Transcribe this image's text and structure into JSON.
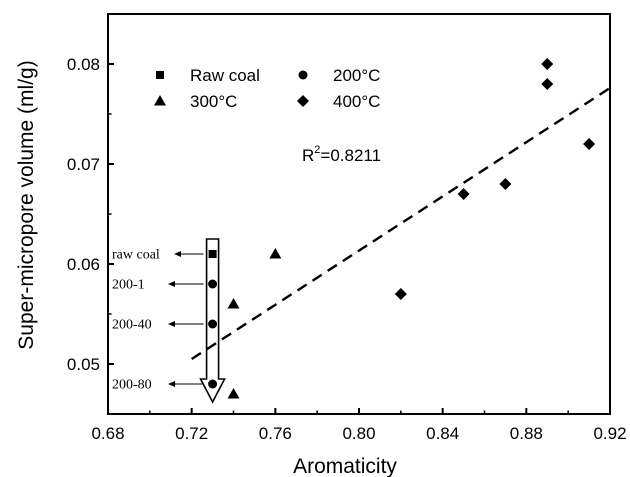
{
  "chart_data": {
    "type": "scatter",
    "title": "",
    "xlabel": "Aromaticity",
    "ylabel": "Super-micropore volume (ml/g)",
    "xlim": [
      0.68,
      0.92
    ],
    "ylim": [
      0.045,
      0.085
    ],
    "x_ticks": [
      "0.68",
      "0.72",
      "0.76",
      "0.80",
      "0.84",
      "0.88",
      "0.92"
    ],
    "y_ticks": [
      "0.05",
      "0.06",
      "0.07",
      "0.08"
    ],
    "x_tick_values": [
      0.68,
      0.72,
      0.76,
      0.8,
      0.84,
      0.88,
      0.92
    ],
    "y_tick_values": [
      0.05,
      0.06,
      0.07,
      0.08
    ],
    "grid": false,
    "legend_position": "top-left",
    "series": [
      {
        "name": "Raw coal",
        "marker": "square",
        "color": "#000000",
        "points": [
          {
            "x": 0.73,
            "y": 0.061
          }
        ]
      },
      {
        "name": "200°C",
        "marker": "circle",
        "color": "#000000",
        "points": [
          {
            "x": 0.73,
            "y": 0.058
          },
          {
            "x": 0.73,
            "y": 0.054
          },
          {
            "x": 0.73,
            "y": 0.048
          }
        ]
      },
      {
        "name": "300°C",
        "marker": "triangle",
        "color": "#000000",
        "points": [
          {
            "x": 0.74,
            "y": 0.056
          },
          {
            "x": 0.74,
            "y": 0.047
          },
          {
            "x": 0.76,
            "y": 0.061
          }
        ]
      },
      {
        "name": "400°C",
        "marker": "diamond",
        "color": "#000000",
        "points": [
          {
            "x": 0.82,
            "y": 0.057
          },
          {
            "x": 0.85,
            "y": 0.067
          },
          {
            "x": 0.87,
            "y": 0.068
          },
          {
            "x": 0.89,
            "y": 0.08
          },
          {
            "x": 0.89,
            "y": 0.078
          },
          {
            "x": 0.91,
            "y": 0.072
          }
        ]
      }
    ],
    "fit_line": {
      "style": "dashed",
      "x": [
        0.72,
        0.92
      ],
      "y": [
        0.0505,
        0.0776
      ]
    },
    "r2_label": {
      "prefix": "R",
      "sup": "2",
      "value": "=0.8211"
    },
    "sample_labels": [
      {
        "text": "raw coal",
        "y": 0.061
      },
      {
        "text": "200-1",
        "y": 0.058
      },
      {
        "text": "200-40",
        "y": 0.054
      },
      {
        "text": "200-80",
        "y": 0.048
      }
    ]
  }
}
